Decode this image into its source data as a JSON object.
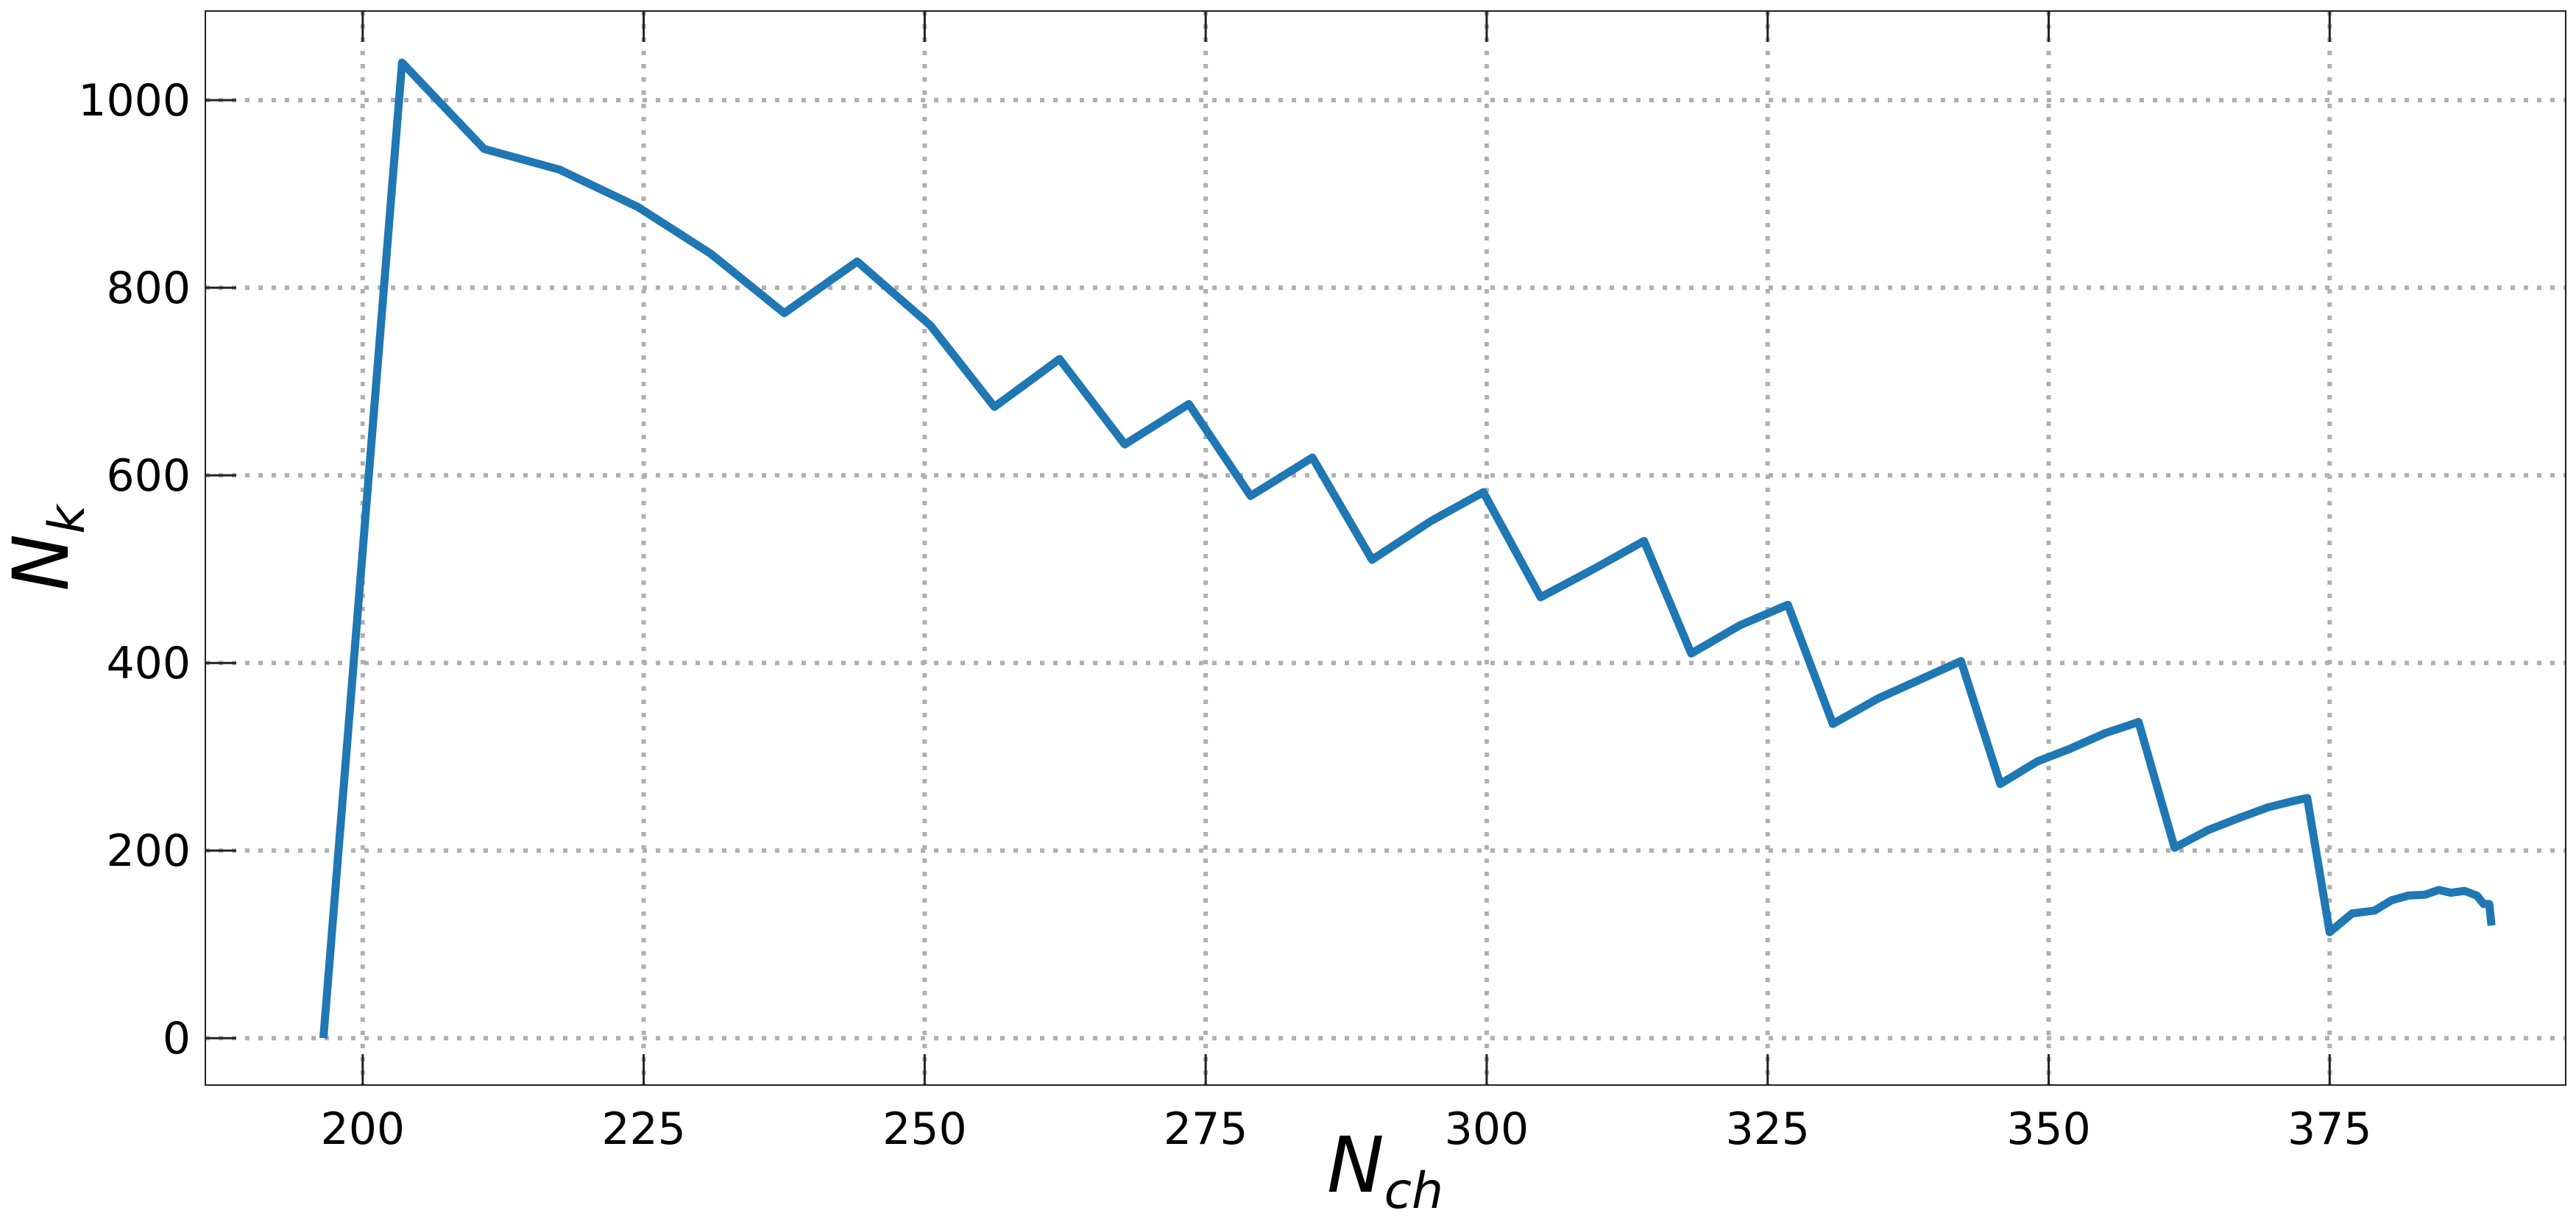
{
  "chart_data": {
    "type": "line",
    "xlabel": {
      "main": "N",
      "sub": "ch"
    },
    "ylabel": {
      "main": "N",
      "sub": "k"
    },
    "xlim": [
      186,
      396
    ],
    "ylim": [
      -50,
      1095
    ],
    "xticks": [
      200,
      225,
      250,
      275,
      300,
      325,
      350,
      375
    ],
    "yticks": [
      0,
      200,
      400,
      600,
      800,
      1000
    ],
    "xtick_labels": [
      "200",
      "225",
      "250",
      "275",
      "300",
      "325",
      "350",
      "375"
    ],
    "ytick_labels": [
      "0",
      "200",
      "400",
      "600",
      "800",
      "1000"
    ],
    "grid": true,
    "grid_style": "dotted",
    "line_color": "#1f77b4",
    "grid_color": "#b0b0b0",
    "series": [
      {
        "x": [
          196.5,
          203.5,
          210.8,
          217.5,
          224.5,
          231,
          237.5,
          244,
          250.5,
          256.2,
          262,
          267.8,
          273.5,
          279,
          284.5,
          289.8,
          295,
          299.7,
          304.8,
          309.5,
          314,
          318.2,
          322.5,
          326.8,
          330.8,
          334.8,
          338.5,
          342.2,
          345.7,
          349,
          352,
          355,
          358,
          361.2,
          364.2,
          367,
          369.5,
          371.5,
          373,
          375,
          377,
          379,
          380.5,
          382,
          383.5,
          384.7,
          385.8,
          387,
          388.1,
          388.7,
          389.2,
          389.4
        ],
        "y": [
          0,
          1040,
          948,
          926,
          886,
          836,
          773,
          828,
          760,
          673,
          724,
          633,
          676,
          578,
          619,
          510,
          551,
          582,
          470,
          500,
          530,
          410,
          440,
          462,
          335,
          362,
          382,
          402,
          271,
          295,
          309,
          325,
          337,
          203,
          222,
          235,
          246,
          252,
          256,
          113,
          133,
          136,
          147,
          152,
          153,
          158,
          155,
          157,
          152,
          143,
          143,
          120
        ]
      }
    ]
  }
}
